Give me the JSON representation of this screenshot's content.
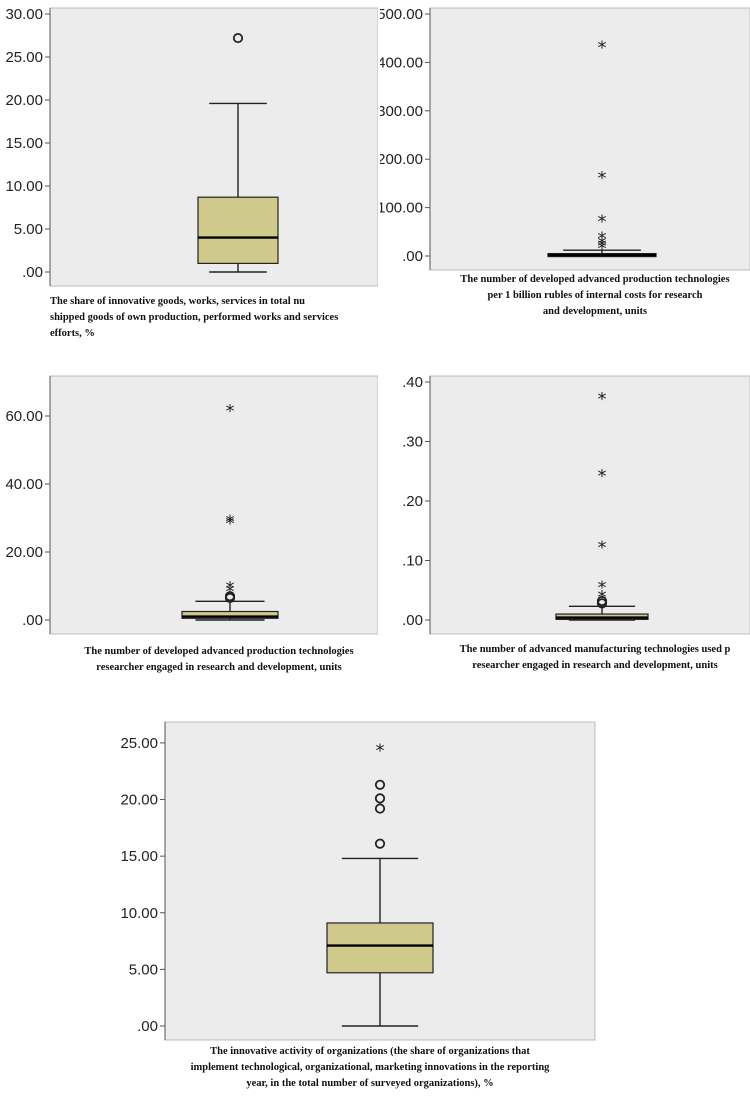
{
  "colors": {
    "plot_background": "#ececec",
    "box_fill": "#cfc98c",
    "line": "#222222"
  },
  "chart_data": [
    {
      "type": "box",
      "ylim": [
        0,
        30
      ],
      "yticks": [
        ".00",
        "5.00",
        "10.00",
        "15.00",
        "20.00",
        "25.00",
        "30.00"
      ],
      "tick_values": [
        0,
        5,
        10,
        15,
        20,
        25,
        30
      ],
      "box": {
        "whisker_low": 0,
        "q1": 1,
        "median": 4,
        "q3": 8.7,
        "whisker_high": 19.6
      },
      "outliers": [
        27.2
      ],
      "extremes": [],
      "caption_lines": [
        "The share of innovative goods, works, services in total nu",
        "shipped goods of own production, performed works and services",
        "efforts, %"
      ]
    },
    {
      "type": "box",
      "ylim": [
        0,
        500
      ],
      "yticks": [
        ".00",
        "100.00",
        "200.00",
        "300.00",
        "400.00",
        "500.00"
      ],
      "tick_values": [
        0,
        100,
        200,
        300,
        400,
        500
      ],
      "box": {
        "whisker_low": 0,
        "q1": 0.5,
        "median": 2,
        "q3": 5,
        "whisker_high": 12
      },
      "outliers": [],
      "extremes": [
        435,
        165,
        75,
        40,
        30,
        25,
        20
      ],
      "caption_lines": [
        "The number of developed advanced production technologies",
        "per 1 billion rubles of internal costs for research",
        "and development, units"
      ]
    },
    {
      "type": "box",
      "ylim": [
        0,
        70
      ],
      "yticks": [
        ".00",
        "20.00",
        "40.00",
        "60.00"
      ],
      "tick_values": [
        0,
        20,
        40,
        60
      ],
      "box": {
        "whisker_low": 0,
        "q1": 0.5,
        "median": 1,
        "q3": 2.5,
        "whisker_high": 5.5
      },
      "outliers": [
        7,
        6.5
      ],
      "extremes": [
        62,
        29.5,
        29,
        10,
        9
      ],
      "caption_lines": [
        "The number of developed advanced production technologies",
        "researcher engaged in research and development, units"
      ]
    },
    {
      "type": "box",
      "ylim": [
        0,
        0.4
      ],
      "yticks": [
        ".00",
        ".10",
        ".20",
        ".30",
        ".40"
      ],
      "tick_values": [
        0,
        0.1,
        0.2,
        0.3,
        0.4
      ],
      "box": {
        "whisker_low": 0,
        "q1": 0.001,
        "median": 0.004,
        "q3": 0.01,
        "whisker_high": 0.023
      },
      "outliers": [
        0.032,
        0.028
      ],
      "extremes": [
        0.375,
        0.245,
        0.125,
        0.058,
        0.042
      ],
      "caption_lines": [
        "The number of advanced manufacturing technologies used p",
        "researcher engaged in research and development, units"
      ]
    },
    {
      "type": "box",
      "ylim": [
        0,
        25
      ],
      "yticks": [
        ".00",
        "5.00",
        "10.00",
        "15.00",
        "20.00",
        "25.00"
      ],
      "tick_values": [
        0,
        5,
        10,
        15,
        20,
        25
      ],
      "box": {
        "whisker_low": 0,
        "q1": 4.7,
        "median": 7.1,
        "q3": 9.1,
        "whisker_high": 14.8
      },
      "outliers": [
        21.3,
        20.1,
        19.2,
        16.1
      ],
      "extremes": [
        24.5
      ],
      "caption_lines": [
        "The innovative activity of organizations (the share of organizations that",
        "implement technological, organizational, marketing innovations in the reporting",
        "year, in the total number of surveyed organizations), %"
      ]
    }
  ]
}
